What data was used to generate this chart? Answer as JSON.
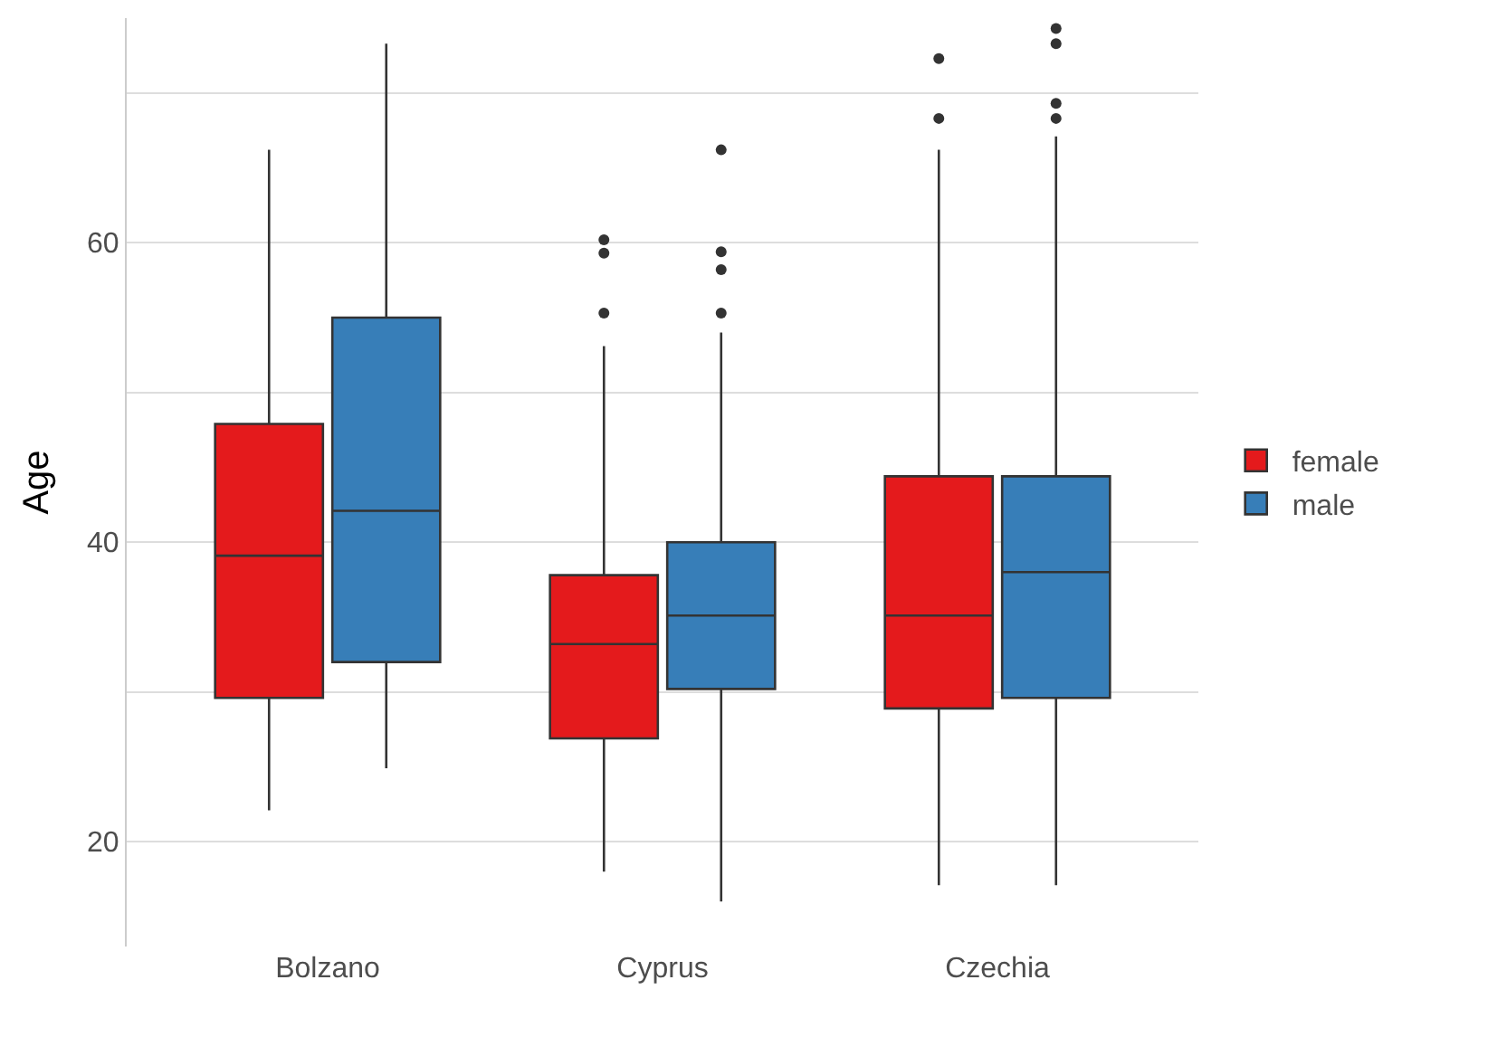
{
  "chart_data": {
    "type": "box",
    "ylabel": "Age",
    "categories": [
      "Bolzano",
      "Cyprus",
      "Czechia"
    ],
    "series": [
      {
        "name": "female",
        "color": "#e41a1c",
        "boxes": [
          {
            "low": 22.1,
            "q1": 29.6,
            "median": 39.1,
            "q3": 47.9,
            "high": 66.2
          },
          {
            "low": 18.0,
            "q1": 26.9,
            "median": 33.2,
            "q3": 37.8,
            "high": 53.1,
            "outliers": [
              60.2,
              59.3,
              55.3
            ]
          },
          {
            "low": 17.1,
            "q1": 28.9,
            "median": 35.1,
            "q3": 44.4,
            "high": 66.2,
            "outliers": [
              72.3,
              68.3
            ]
          }
        ]
      },
      {
        "name": "male",
        "color": "#377eb8",
        "boxes": [
          {
            "low": 24.9,
            "q1": 32.0,
            "median": 42.1,
            "q3": 55.0,
            "high": 73.3
          },
          {
            "low": 16.0,
            "q1": 30.2,
            "median": 35.1,
            "q3": 40.0,
            "high": 54.0,
            "outliers": [
              66.2,
              59.4,
              58.2,
              55.3
            ]
          },
          {
            "low": 17.1,
            "q1": 29.6,
            "median": 38.0,
            "q3": 44.4,
            "high": 67.1,
            "outliers": [
              74.3,
              73.3,
              69.3,
              68.3
            ]
          }
        ]
      }
    ],
    "ylim": [
      13,
      75
    ],
    "yticks": [
      20,
      {
        "value": 30,
        "label": null
      },
      40,
      {
        "value": 50,
        "label": null
      },
      60,
      {
        "value": 70,
        "label": null
      }
    ],
    "grid": "y",
    "legend": "right"
  }
}
